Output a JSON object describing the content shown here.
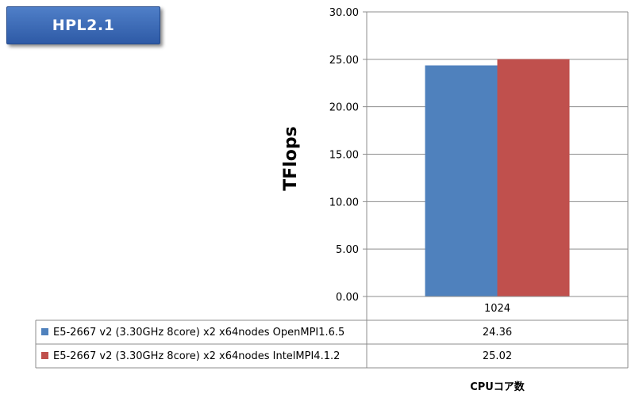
{
  "chart_data": {
    "type": "bar",
    "title": "HPL2.1",
    "ylabel": "TFlops",
    "xlabel": "CPUコア数",
    "categories": [
      "1024"
    ],
    "ylim": [
      0,
      30
    ],
    "yticks": [
      "0.00",
      "5.00",
      "10.00",
      "15.00",
      "20.00",
      "25.00",
      "30.00"
    ],
    "ytick_values": [
      0,
      5,
      10,
      15,
      20,
      25,
      30
    ],
    "grid": true,
    "legend_placement": "data-table-below",
    "series": [
      {
        "name": "E5-2667 v2 (3.30GHz 8core) x2 x64nodes OpenMPI1.6.5",
        "values": [
          24.36
        ],
        "value_labels": [
          "24.36"
        ],
        "color": "#4f81bd"
      },
      {
        "name": "E5-2667 v2 (3.30GHz 8core) x2 x64nodes IntelMPI4.1.2",
        "values": [
          25.02
        ],
        "value_labels": [
          "25.02"
        ],
        "color": "#c0504d"
      }
    ]
  }
}
